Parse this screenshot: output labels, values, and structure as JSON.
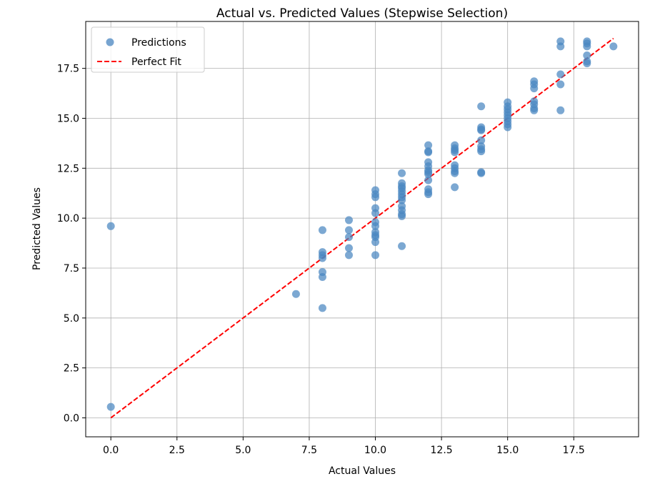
{
  "chart_data": {
    "type": "scatter",
    "title": "Actual vs. Predicted Values (Stepwise Selection)",
    "xlabel": "Actual Values",
    "ylabel": "Predicted Values",
    "xlim": [
      -0.95,
      19.95
    ],
    "ylim": [
      -0.95,
      19.85
    ],
    "xticks": [
      0.0,
      2.5,
      5.0,
      7.5,
      10.0,
      12.5,
      15.0,
      17.5
    ],
    "yticks": [
      0.0,
      2.5,
      5.0,
      7.5,
      10.0,
      12.5,
      15.0,
      17.5
    ],
    "xtick_labels": [
      "0.0",
      "2.5",
      "5.0",
      "7.5",
      "10.0",
      "12.5",
      "15.0",
      "17.5"
    ],
    "ytick_labels": [
      "0.0",
      "2.5",
      "5.0",
      "7.5",
      "10.0",
      "12.5",
      "15.0",
      "17.5"
    ],
    "grid": true,
    "legend_position": "top-left",
    "series": [
      {
        "name": "Predictions",
        "kind": "scatter",
        "color": "#4a86c0",
        "points": [
          [
            0,
            9.6
          ],
          [
            0,
            0.55
          ],
          [
            7,
            6.2
          ],
          [
            8,
            9.4
          ],
          [
            8,
            8.3
          ],
          [
            8,
            8.15
          ],
          [
            8,
            8.0
          ],
          [
            8,
            7.3
          ],
          [
            8,
            7.05
          ],
          [
            8,
            5.5
          ],
          [
            9,
            9.9
          ],
          [
            9,
            9.4
          ],
          [
            9,
            9.05
          ],
          [
            9,
            8.5
          ],
          [
            9,
            8.15
          ],
          [
            10,
            11.4
          ],
          [
            10,
            11.2
          ],
          [
            10,
            11.05
          ],
          [
            10,
            10.5
          ],
          [
            10,
            10.25
          ],
          [
            10,
            9.8
          ],
          [
            10,
            9.6
          ],
          [
            10,
            9.3
          ],
          [
            10,
            9.15
          ],
          [
            10,
            9.05
          ],
          [
            10,
            8.8
          ],
          [
            10,
            8.15
          ],
          [
            11,
            12.25
          ],
          [
            11,
            11.75
          ],
          [
            11,
            11.6
          ],
          [
            11,
            11.5
          ],
          [
            11,
            11.35
          ],
          [
            11,
            11.2
          ],
          [
            11,
            11.05
          ],
          [
            11,
            10.9
          ],
          [
            11,
            10.6
          ],
          [
            11,
            10.4
          ],
          [
            11,
            10.2
          ],
          [
            11,
            10.1
          ],
          [
            11,
            8.6
          ],
          [
            12,
            13.65
          ],
          [
            12,
            13.35
          ],
          [
            12,
            13.3
          ],
          [
            12,
            12.8
          ],
          [
            12,
            12.6
          ],
          [
            12,
            12.4
          ],
          [
            12,
            12.3
          ],
          [
            12,
            12.2
          ],
          [
            12,
            11.9
          ],
          [
            12,
            11.45
          ],
          [
            12,
            11.3
          ],
          [
            12,
            11.2
          ],
          [
            13,
            13.65
          ],
          [
            13,
            13.5
          ],
          [
            13,
            13.4
          ],
          [
            13,
            13.3
          ],
          [
            13,
            12.65
          ],
          [
            13,
            12.5
          ],
          [
            13,
            12.35
          ],
          [
            13,
            12.25
          ],
          [
            13,
            11.55
          ],
          [
            14,
            15.6
          ],
          [
            14,
            14.55
          ],
          [
            14,
            14.45
          ],
          [
            14,
            14.4
          ],
          [
            14,
            13.9
          ],
          [
            14,
            13.6
          ],
          [
            14,
            13.45
          ],
          [
            14,
            13.35
          ],
          [
            14,
            12.3
          ],
          [
            14,
            12.25
          ],
          [
            15,
            15.8
          ],
          [
            15,
            15.6
          ],
          [
            15,
            15.45
          ],
          [
            15,
            15.3
          ],
          [
            15,
            15.15
          ],
          [
            15,
            15.0
          ],
          [
            15,
            14.85
          ],
          [
            15,
            14.7
          ],
          [
            15,
            14.55
          ],
          [
            16,
            16.85
          ],
          [
            16,
            16.7
          ],
          [
            16,
            16.5
          ],
          [
            16,
            15.85
          ],
          [
            16,
            15.7
          ],
          [
            16,
            15.5
          ],
          [
            16,
            15.4
          ],
          [
            17,
            18.85
          ],
          [
            17,
            18.6
          ],
          [
            17,
            17.2
          ],
          [
            17,
            16.7
          ],
          [
            17,
            15.4
          ],
          [
            18,
            18.85
          ],
          [
            18,
            18.75
          ],
          [
            18,
            18.6
          ],
          [
            18,
            18.15
          ],
          [
            18,
            17.85
          ],
          [
            18,
            17.75
          ],
          [
            19,
            18.6
          ]
        ]
      },
      {
        "name": "Perfect Fit",
        "kind": "line",
        "style": "dashed",
        "color": "#ff0000",
        "x": [
          0,
          19
        ],
        "y": [
          0,
          19
        ]
      }
    ]
  }
}
